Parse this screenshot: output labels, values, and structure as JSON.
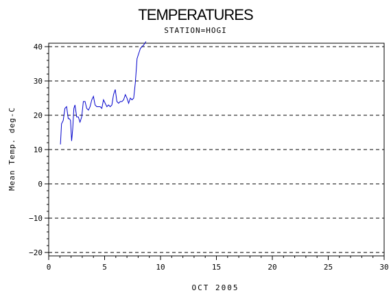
{
  "chart_data": {
    "type": "line",
    "title": "TEMPERATURES",
    "subtitle": "STATION=HOGI",
    "xlabel": "OCT 2005",
    "ylabel": "Mean Temp. deg-C",
    "xlim": [
      0,
      30
    ],
    "ylim": [
      -21,
      41
    ],
    "x_ticks": [
      0,
      5,
      10,
      15,
      20,
      25,
      30
    ],
    "y_ticks": [
      -20,
      -10,
      0,
      10,
      20,
      30,
      40
    ],
    "grid": "horizontal-dashed",
    "series": [
      {
        "color": "#0000cc",
        "x": [
          1.05,
          1.15,
          1.3,
          1.45,
          1.6,
          1.75,
          1.85,
          1.95,
          2.05,
          2.15,
          2.25,
          2.35,
          2.5,
          2.65,
          2.8,
          2.95,
          3.1,
          3.25,
          3.4,
          3.55,
          3.7,
          3.85,
          4.0,
          4.15,
          4.3,
          4.45,
          4.6,
          4.75,
          4.9,
          5.05,
          5.2,
          5.35,
          5.5,
          5.65,
          5.8,
          5.95,
          6.1,
          6.25,
          6.4,
          6.55,
          6.7,
          6.85,
          7.0,
          7.15,
          7.3,
          7.45,
          7.6,
          7.75,
          7.9,
          8.05,
          8.2,
          8.35,
          8.5,
          8.6,
          8.7
        ],
        "y": [
          11.5,
          17.5,
          18.5,
          22.0,
          22.5,
          19.0,
          19.0,
          18.5,
          12.5,
          16.0,
          22.0,
          23.0,
          19.5,
          19.5,
          18.0,
          19.5,
          24.0,
          24.0,
          22.0,
          21.5,
          22.5,
          24.5,
          25.5,
          23.0,
          22.5,
          22.5,
          22.5,
          22.0,
          24.5,
          23.5,
          22.5,
          23.0,
          22.5,
          23.0,
          26.0,
          27.5,
          24.0,
          23.5,
          24.0,
          24.0,
          24.5,
          26.0,
          25.0,
          23.5,
          25.0,
          24.5,
          25.0,
          29.5,
          36.5,
          38.0,
          39.5,
          40.0,
          40.5,
          41.0,
          41.5
        ]
      }
    ]
  }
}
